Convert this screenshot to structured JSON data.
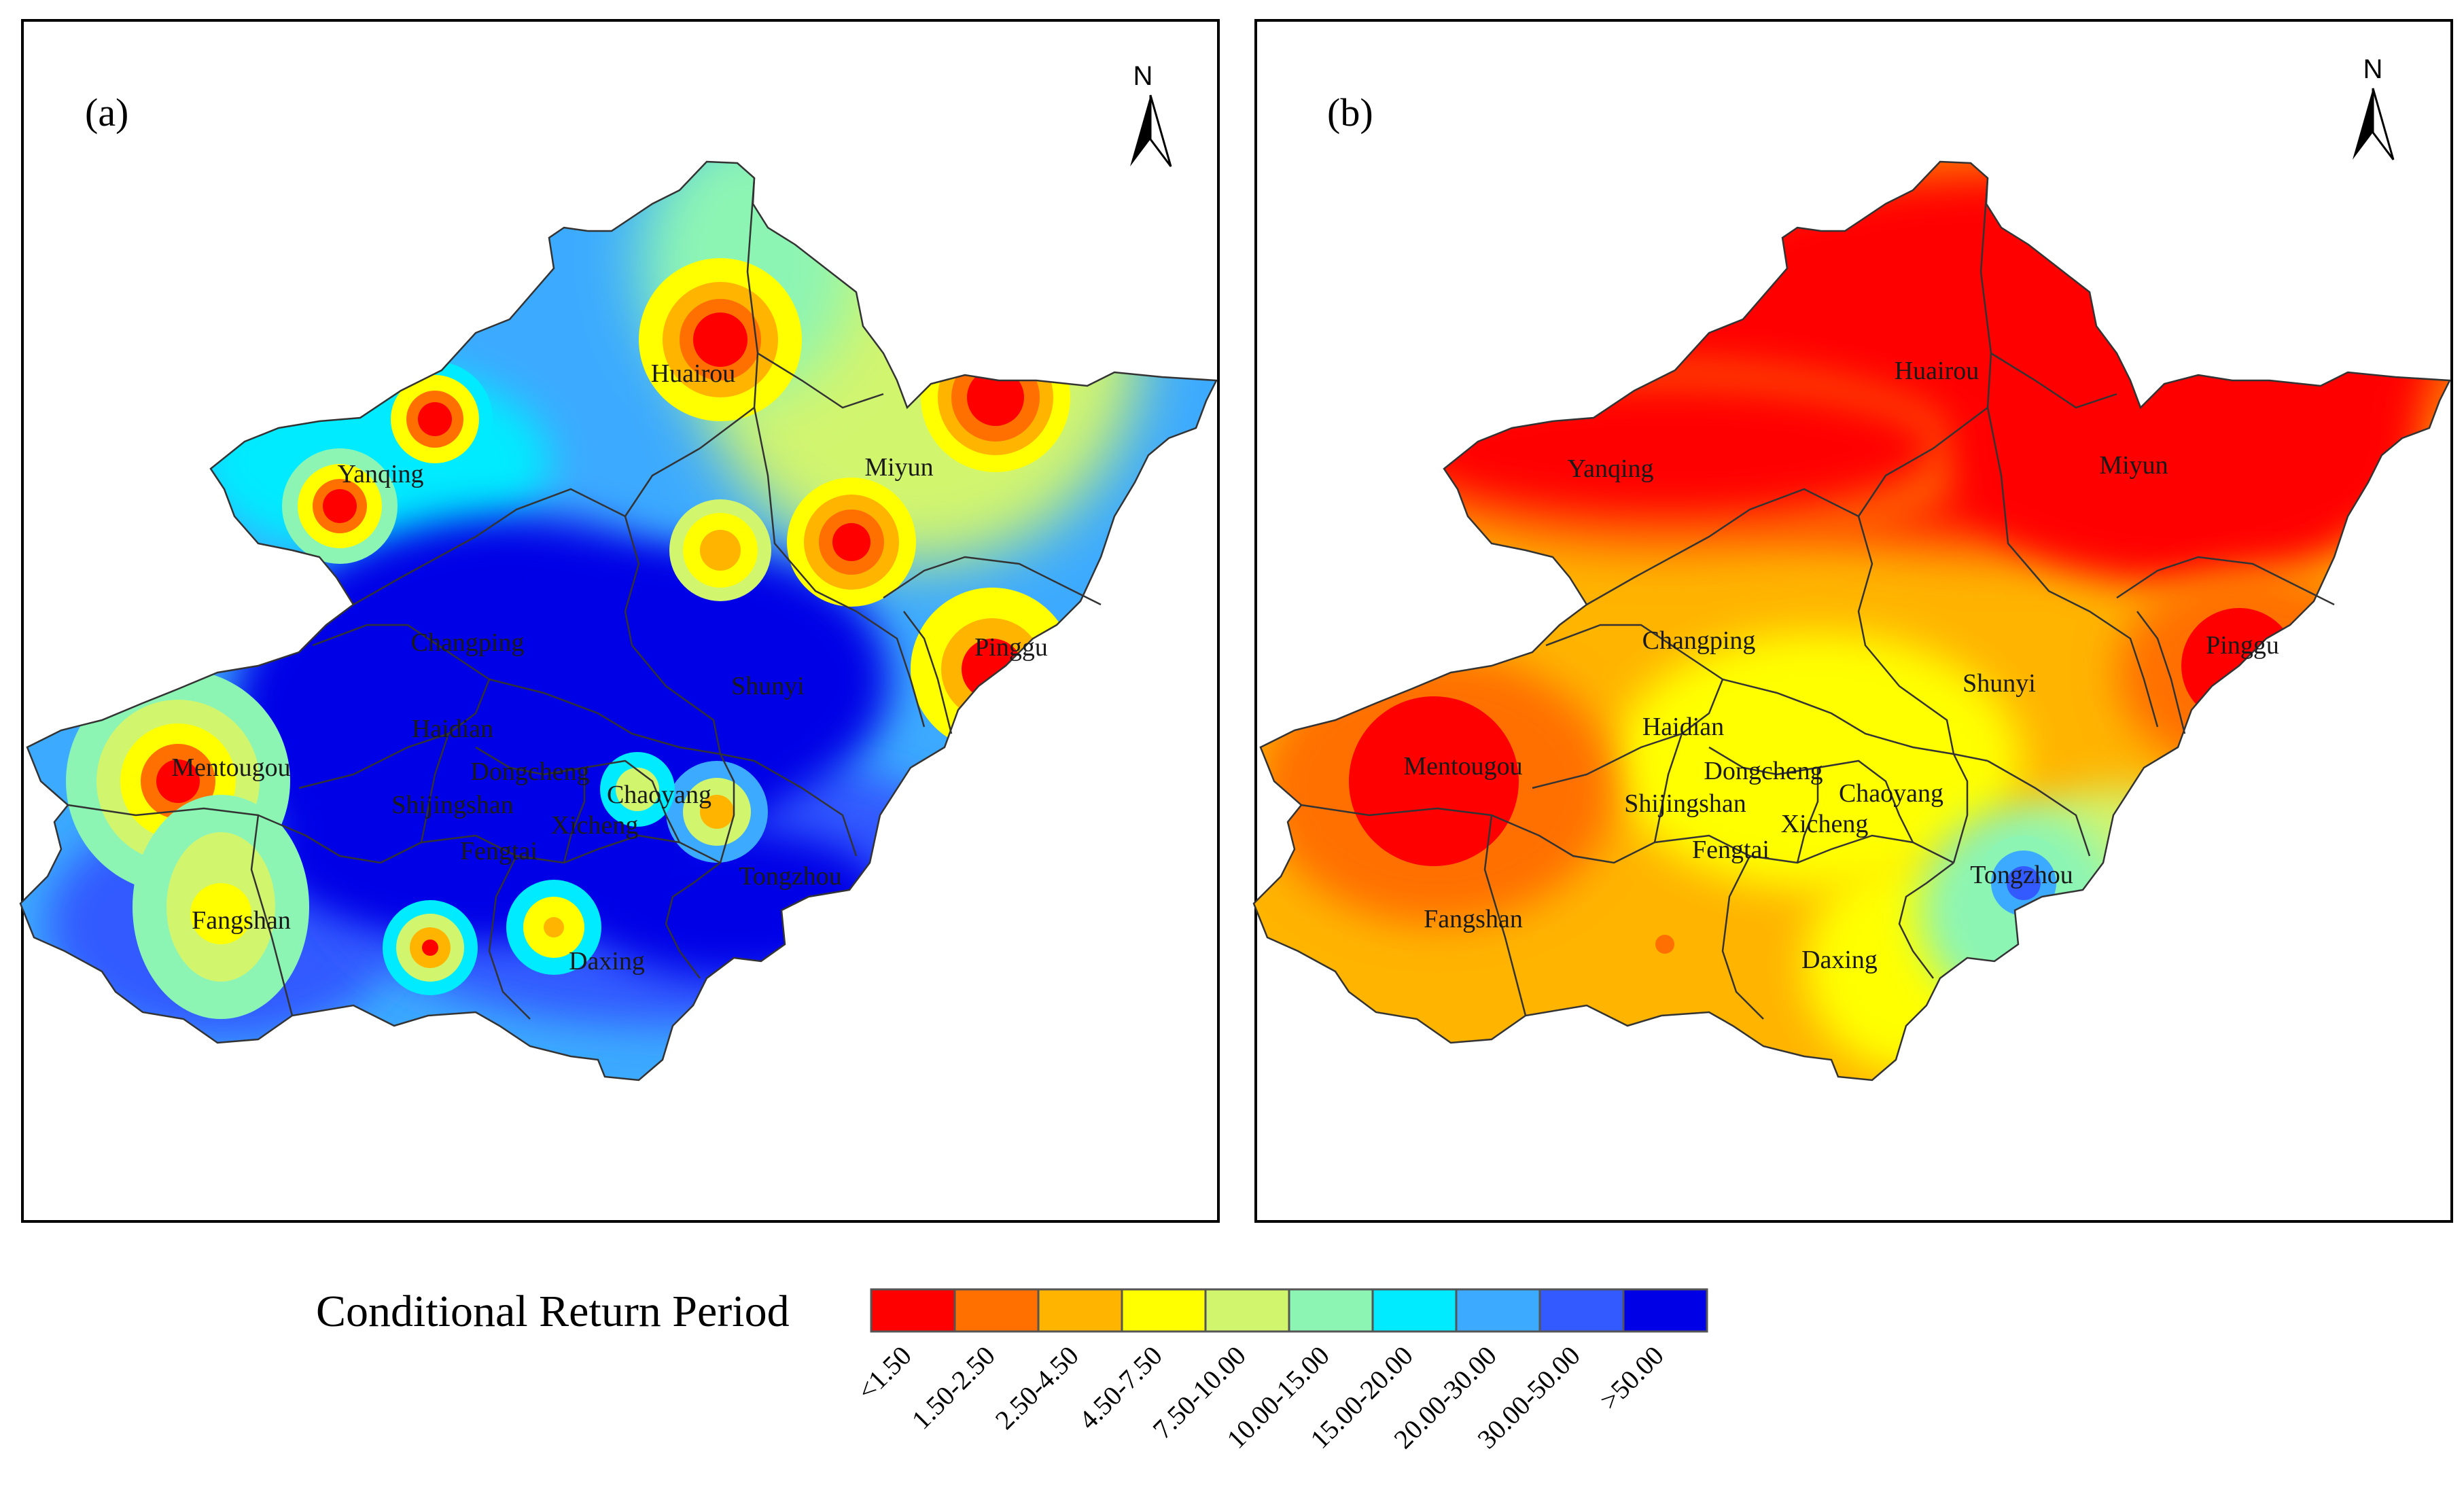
{
  "panels": [
    {
      "label": "(a)",
      "north": "N",
      "districts": [
        "Huairou",
        "Yanqing",
        "Miyun",
        "Changping",
        "Pinggu",
        "Shunyi",
        "Haidian",
        "Mentougou",
        "Dongcheng",
        "Chaoyang",
        "Shijingshan",
        "Xicheng",
        "Fengtai",
        "Tongzhou",
        "Fangshan",
        "Daxing"
      ]
    },
    {
      "label": "(b)",
      "north": "N",
      "districts": [
        "Huairou",
        "Yanqing",
        "Miyun",
        "Changping",
        "Pinggu",
        "Shunyi",
        "Haidian",
        "Mentougou",
        "Dongcheng",
        "Chaoyang",
        "Shijingshan",
        "Xicheng",
        "Fengtai",
        "Tongzhou",
        "Fangshan",
        "Daxing"
      ]
    }
  ],
  "legend": {
    "title": "Conditional Return Period",
    "classes": [
      {
        "label": "<1.50",
        "color": "#ff0000"
      },
      {
        "label": "1.50-2.50",
        "color": "#ff7000"
      },
      {
        "label": "2.50-4.50",
        "color": "#ffb400"
      },
      {
        "label": "4.50-7.50",
        "color": "#ffff00"
      },
      {
        "label": "7.50-10.00",
        "color": "#d2f56e"
      },
      {
        "label": "10.00-15.00",
        "color": "#8cf5b4"
      },
      {
        "label": "15.00-20.00",
        "color": "#00ebff"
      },
      {
        "label": "20.00-30.00",
        "color": "#3caaff"
      },
      {
        "label": "30.00-50.00",
        "color": "#325aff"
      },
      {
        "label": ">50.00",
        "color": "#0000e6"
      }
    ]
  }
}
